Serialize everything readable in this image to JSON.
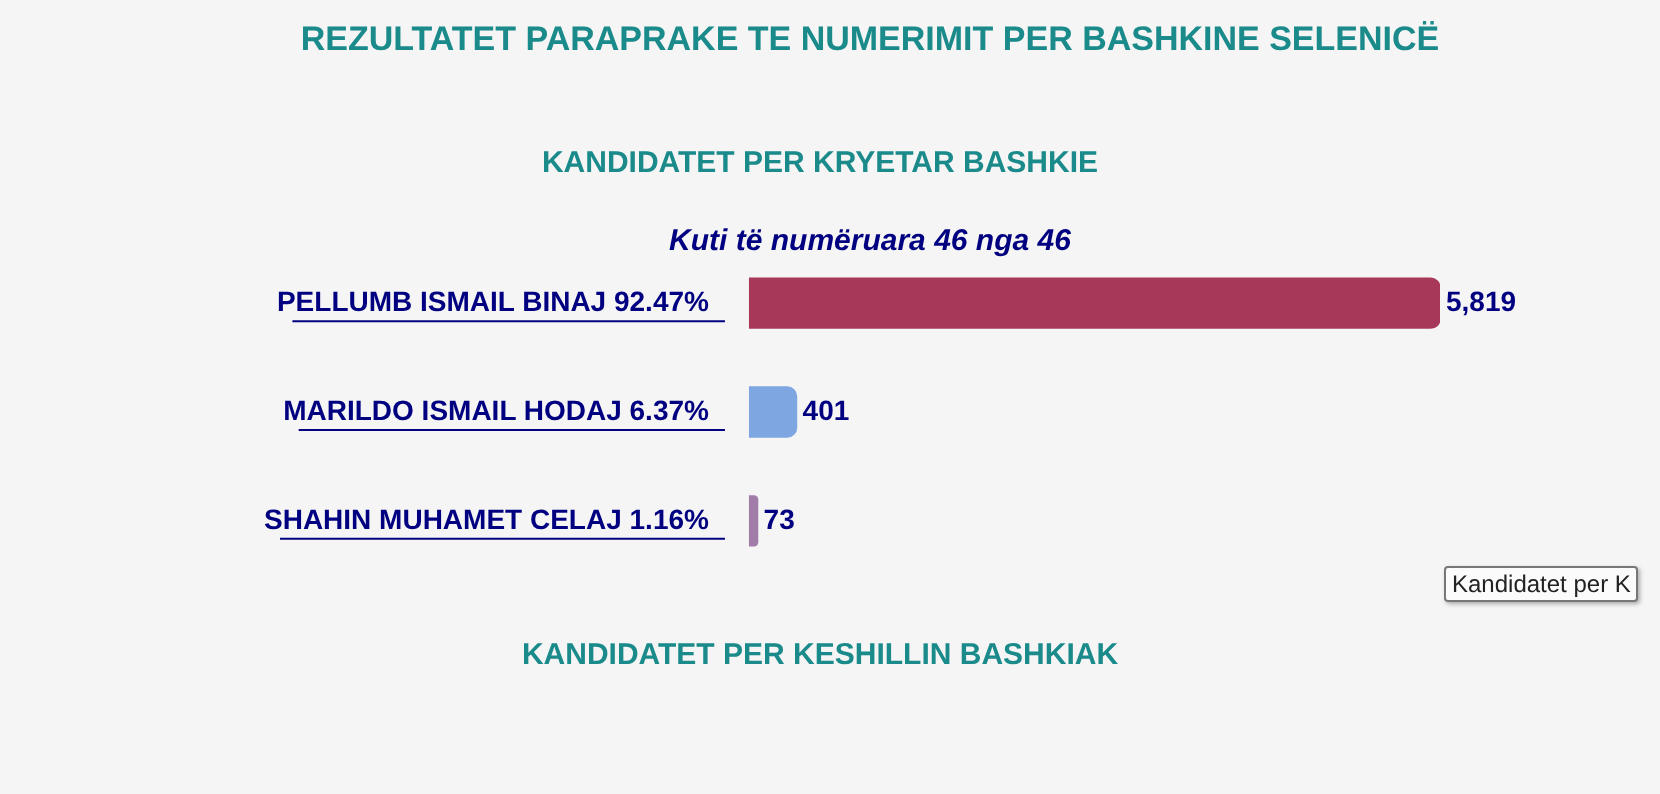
{
  "chart_data": {
    "type": "bar",
    "orientation": "horizontal",
    "title": "REZULTATET PARAPRAKE TE NUMERIMIT PER BASHKINE SELENICË",
    "subtitle": "KANDIDATET PER KRYETAR BASHKIE",
    "categories": [
      "PELLUMB ISMAIL BINAJ 92.47%",
      "MARILDO ISMAIL HODAJ 6.37%",
      "SHAHIN MUHAMET CELAJ 1.16%"
    ],
    "values": [
      5819,
      401,
      73
    ],
    "colors": [
      "#a8385a",
      "#7ea6e0",
      "#a17ca8"
    ],
    "value_labels": [
      "5,819",
      "401",
      "73"
    ],
    "annotations": [
      "Kuti të numëruara 46 nga 46",
      "KANDIDATET PER KESHILLIN BASHKIAK",
      "Kandidatet per K"
    ],
    "legend": false
  }
}
